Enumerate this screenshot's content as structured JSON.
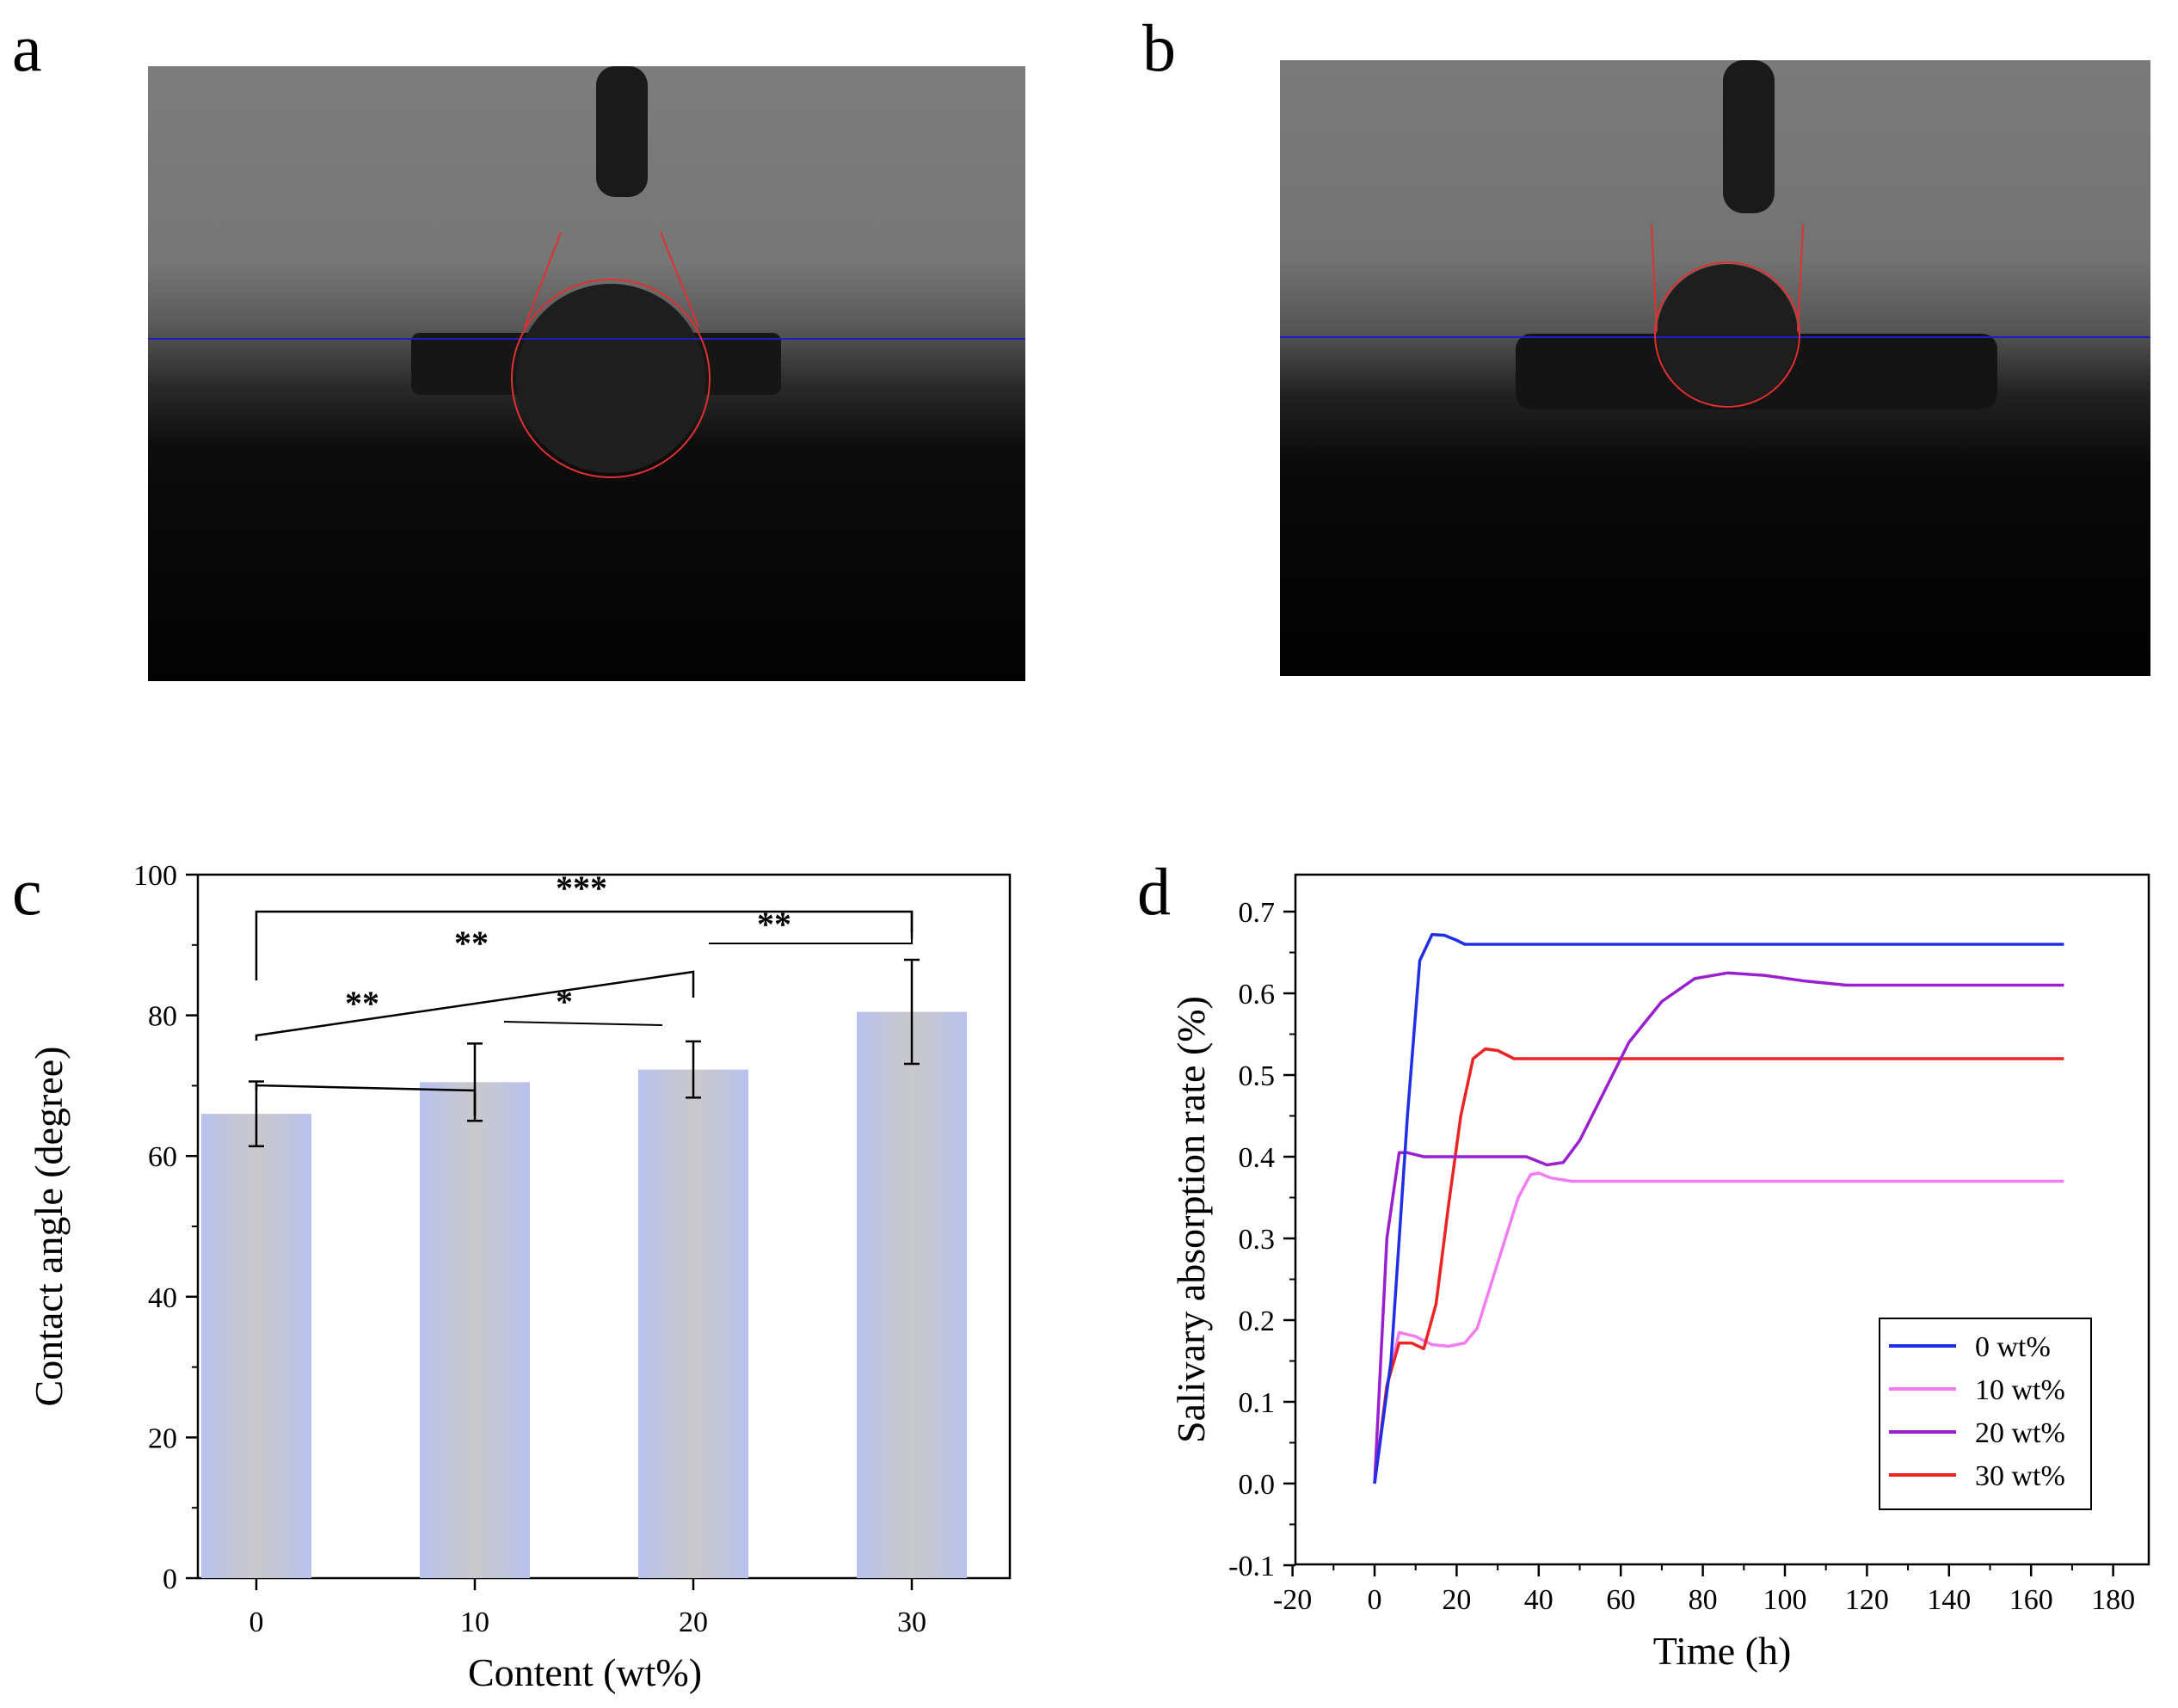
{
  "panels": {
    "a": {
      "label": "a"
    },
    "b": {
      "label": "b"
    },
    "c": {
      "label": "c"
    },
    "d": {
      "label": "d"
    }
  },
  "colors": {
    "bar_fill": "#c6c9d6",
    "bar_edge": "#b8c2ee",
    "baseline_line": "#1f1fbf",
    "fit_line": "#e03030",
    "series_0": "#1f2fe6",
    "series_10": "#f27cf2",
    "series_20": "#9a1fd0",
    "series_30": "#ee2424"
  },
  "chart_data": [
    {
      "type": "bar",
      "panel": "c",
      "xlabel": "Content (wt%)",
      "ylabel": "Contact angle (degree)",
      "categories": [
        "0",
        "10",
        "20",
        "30"
      ],
      "values": [
        66,
        70.5,
        72.3,
        80.5
      ],
      "errors": [
        4.6,
        5.5,
        4.0,
        7.4
      ],
      "ylim": [
        0,
        100
      ],
      "yticks": [
        "0",
        "20",
        "40",
        "60",
        "80",
        "100"
      ],
      "significance": [
        {
          "from": "0",
          "to": "10",
          "label": "**"
        },
        {
          "from": "10",
          "to": "20",
          "label": "*"
        },
        {
          "from": "0",
          "to": "20",
          "label": "**"
        },
        {
          "from": "20",
          "to": "30",
          "label": "**"
        },
        {
          "from": "0",
          "to": "30",
          "label": "***"
        }
      ]
    },
    {
      "type": "line",
      "panel": "d",
      "xlabel": "Time (h)",
      "ylabel": "Salivary absorption rate (%)",
      "xlim": [
        -20,
        180
      ],
      "ylim": [
        -0.1,
        0.75
      ],
      "xticks": [
        "-20",
        "0",
        "20",
        "40",
        "60",
        "80",
        "100",
        "120",
        "140",
        "160",
        "180"
      ],
      "yticks": [
        "-0.1",
        "0.0",
        "0.1",
        "0.2",
        "0.3",
        "0.4",
        "0.5",
        "0.6",
        "0.7"
      ],
      "legend_position": "bottom-right",
      "series": [
        {
          "name": "0 wt%",
          "x": [
            0,
            4,
            8,
            11,
            14,
            17,
            20,
            22,
            25,
            30,
            60,
            100,
            140,
            168
          ],
          "y": [
            0,
            0.15,
            0.45,
            0.64,
            0.672,
            0.671,
            0.665,
            0.66,
            0.66,
            0.66,
            0.66,
            0.66,
            0.66,
            0.66
          ]
        },
        {
          "name": "10 wt%",
          "x": [
            0,
            3,
            6,
            10,
            14,
            18,
            22,
            25,
            30,
            35,
            38,
            40,
            43,
            48,
            60,
            100,
            140,
            168
          ],
          "y": [
            0,
            0.12,
            0.185,
            0.18,
            0.17,
            0.168,
            0.172,
            0.19,
            0.27,
            0.35,
            0.378,
            0.38,
            0.374,
            0.37,
            0.37,
            0.37,
            0.37,
            0.37
          ]
        },
        {
          "name": "20 wt%",
          "x": [
            0,
            3,
            6,
            8,
            12,
            20,
            30,
            37,
            42,
            46,
            50,
            56,
            62,
            70,
            78,
            86,
            95,
            105,
            115,
            130,
            168
          ],
          "y": [
            0,
            0.3,
            0.405,
            0.405,
            0.4,
            0.4,
            0.4,
            0.4,
            0.39,
            0.393,
            0.42,
            0.48,
            0.54,
            0.59,
            0.618,
            0.625,
            0.622,
            0.615,
            0.61,
            0.61,
            0.61
          ]
        },
        {
          "name": "30 wt%",
          "x": [
            0,
            3,
            6,
            9,
            12,
            15,
            18,
            21,
            24,
            27,
            30,
            34,
            40,
            60,
            100,
            140,
            168
          ],
          "y": [
            0,
            0.12,
            0.172,
            0.172,
            0.165,
            0.22,
            0.34,
            0.45,
            0.52,
            0.532,
            0.53,
            0.52,
            0.52,
            0.52,
            0.52,
            0.52,
            0.52
          ]
        }
      ]
    }
  ]
}
